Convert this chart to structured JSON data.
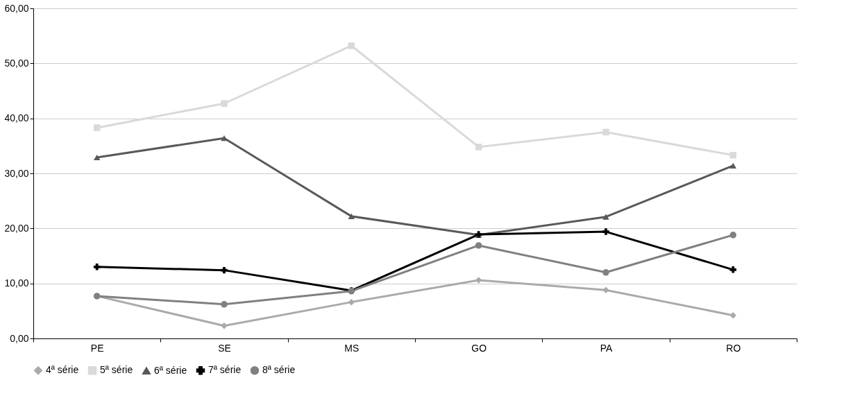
{
  "chart_data": {
    "type": "line",
    "categories": [
      "PE",
      "SE",
      "MS",
      "GO",
      "PA",
      "RO"
    ],
    "series": [
      {
        "name": "4ª série",
        "color": "#aaaaaa",
        "marker": "diamond",
        "values": [
          7.7,
          2.3,
          6.6,
          10.6,
          8.8,
          4.2
        ]
      },
      {
        "name": "5ª série",
        "color": "#d9d9d9",
        "marker": "square",
        "values": [
          38.3,
          42.7,
          53.2,
          34.8,
          37.5,
          33.3
        ]
      },
      {
        "name": "6ª série",
        "color": "#595959",
        "marker": "triangle",
        "values": [
          32.9,
          36.4,
          22.2,
          18.8,
          22.1,
          31.4
        ]
      },
      {
        "name": "7ª série",
        "color": "#000000",
        "marker": "cross",
        "values": [
          13.0,
          12.4,
          8.7,
          18.9,
          19.4,
          12.5
        ]
      },
      {
        "name": "8ª série",
        "color": "#808080",
        "marker": "circle",
        "values": [
          7.7,
          6.2,
          8.6,
          16.9,
          12.0,
          18.8
        ]
      }
    ],
    "ylim": [
      0,
      60
    ],
    "yticks": [
      {
        "value": 0,
        "label": "0,00"
      },
      {
        "value": 10,
        "label": "10,00"
      },
      {
        "value": 20,
        "label": "20,00"
      },
      {
        "value": 30,
        "label": "30,00"
      },
      {
        "value": 40,
        "label": "40,00"
      },
      {
        "value": 50,
        "label": "50,00"
      },
      {
        "value": 60,
        "label": "60,00"
      }
    ],
    "grid": "y",
    "legend": "bottom",
    "line_style": "solid"
  }
}
